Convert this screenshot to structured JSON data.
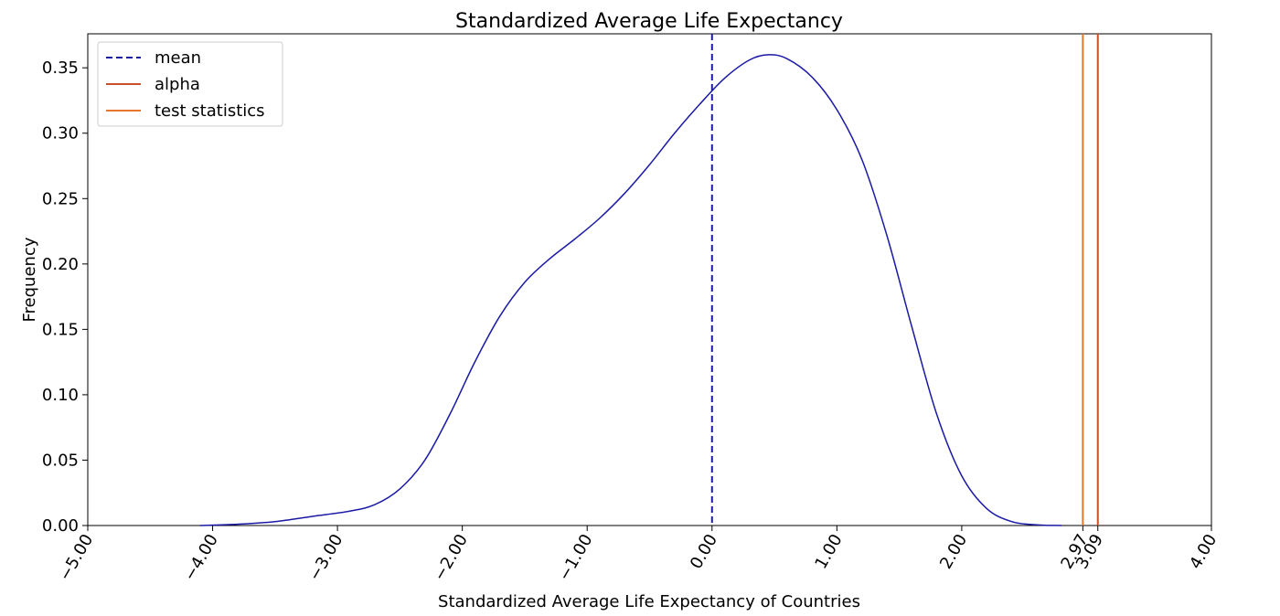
{
  "chart_data": {
    "type": "line",
    "title": "Standardized Average Life Expectancy",
    "xlabel": "Standardized Average Life Expectancy of Countries",
    "ylabel": "Frequency",
    "xlim": [
      -5.0,
      4.0
    ],
    "ylim": [
      0.0,
      0.376
    ],
    "x_ticks": [
      -5.0,
      -4.0,
      -3.0,
      -2.0,
      -1.0,
      0.0,
      1.0,
      2.0,
      2.97,
      3.09,
      4.0
    ],
    "x_tick_labels": [
      "−5.00",
      "−4.00",
      "−3.00",
      "−2.00",
      "−1.00",
      "0.00",
      "1.00",
      "2.00",
      "2.97",
      "3.09",
      "4.00"
    ],
    "y_ticks": [
      0.0,
      0.05,
      0.1,
      0.15,
      0.2,
      0.25,
      0.3,
      0.35
    ],
    "y_tick_labels": [
      "0.00",
      "0.05",
      "0.10",
      "0.15",
      "0.20",
      "0.25",
      "0.30",
      "0.35"
    ],
    "grid": false,
    "legend_position": "top-left",
    "series": [
      {
        "name": "",
        "color": "#1a1aa6",
        "style": "solid",
        "x": [
          -4.1,
          -3.8,
          -3.5,
          -3.2,
          -2.9,
          -2.7,
          -2.5,
          -2.3,
          -2.1,
          -1.9,
          -1.7,
          -1.5,
          -1.3,
          -1.1,
          -0.9,
          -0.7,
          -0.5,
          -0.3,
          -0.1,
          0.1,
          0.3,
          0.45,
          0.6,
          0.8,
          1.0,
          1.2,
          1.4,
          1.6,
          1.8,
          2.0,
          2.2,
          2.4,
          2.6,
          2.8
        ],
        "y": [
          0.0,
          0.001,
          0.003,
          0.007,
          0.011,
          0.016,
          0.028,
          0.05,
          0.085,
          0.125,
          0.16,
          0.186,
          0.204,
          0.219,
          0.235,
          0.254,
          0.276,
          0.3,
          0.322,
          0.342,
          0.356,
          0.36,
          0.357,
          0.343,
          0.318,
          0.28,
          0.222,
          0.152,
          0.085,
          0.038,
          0.013,
          0.003,
          0.0005,
          0.0
        ]
      }
    ],
    "vlines": [
      {
        "name": "mean",
        "x": 0.0,
        "color": "#1a1aa6",
        "style": "dashed"
      },
      {
        "name": "alpha",
        "x": 3.09,
        "color": "#c8502a",
        "style": "solid"
      },
      {
        "name": "test statistics",
        "x": 2.97,
        "color": "#e8772e",
        "style": "solid"
      }
    ]
  }
}
